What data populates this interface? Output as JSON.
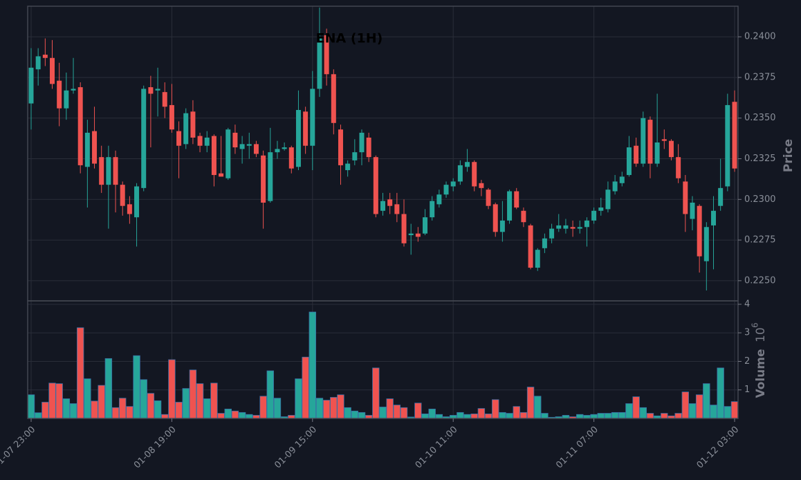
{
  "chart_data": {
    "type": "candlestick",
    "title": "ENA (1H)",
    "y_label": "Price",
    "volume_label": "Volume",
    "volume_scale": {
      "base": "10",
      "exponent": "6"
    },
    "up_color": "#26a69a",
    "down_color": "#ef5350",
    "grid": true,
    "categories": [
      "01-07 23:00",
      null,
      null,
      null,
      null,
      null,
      null,
      null,
      null,
      null,
      null,
      null,
      null,
      null,
      null,
      null,
      null,
      null,
      null,
      null,
      "01-08 19:00",
      null,
      null,
      null,
      null,
      null,
      null,
      null,
      null,
      null,
      null,
      null,
      null,
      null,
      null,
      null,
      null,
      null,
      null,
      null,
      "01-09 15:00",
      null,
      null,
      null,
      null,
      null,
      null,
      null,
      null,
      null,
      null,
      null,
      null,
      null,
      null,
      null,
      null,
      null,
      null,
      null,
      "01-10 11:00",
      null,
      null,
      null,
      null,
      null,
      null,
      null,
      null,
      null,
      null,
      null,
      null,
      null,
      null,
      null,
      null,
      null,
      null,
      null,
      "01-11 07:00",
      null,
      null,
      null,
      null,
      null,
      null,
      null,
      null,
      null,
      null,
      null,
      null,
      null,
      null,
      null,
      null,
      null,
      null,
      null,
      "01-12 03:00"
    ],
    "open": [
      0.2359,
      0.238,
      0.2389,
      0.2387,
      0.2373,
      0.2356,
      0.2367,
      0.2369,
      0.232,
      0.2342,
      0.2326,
      0.2309,
      0.2326,
      0.2309,
      0.2297,
      0.2289,
      0.2307,
      0.2369,
      0.2367,
      0.2366,
      0.2358,
      0.2342,
      0.2334,
      0.2354,
      0.2339,
      0.2333,
      0.2339,
      0.2316,
      0.2313,
      0.2341,
      0.2331,
      0.2333,
      0.2334,
      0.2327,
      0.2299,
      0.2329,
      0.2331,
      0.2332,
      0.232,
      0.2354,
      0.2333,
      0.2368,
      0.2401,
      0.2377,
      0.2343,
      0.2318,
      0.2324,
      0.2329,
      0.2338,
      0.2326,
      0.2293,
      0.23,
      0.2297,
      0.2291,
      0.2278,
      0.2279,
      0.2279,
      0.2289,
      0.2297,
      0.2303,
      0.2308,
      0.2311,
      0.232,
      0.2323,
      0.231,
      0.2306,
      0.2297,
      0.228,
      0.2287,
      0.2305,
      0.2293,
      0.2284,
      0.2258,
      0.227,
      0.2276,
      0.2282,
      0.2282,
      0.2283,
      0.2282,
      0.2283,
      0.2287,
      0.2293,
      0.2294,
      0.2305,
      0.231,
      0.2315,
      0.2333,
      0.2322,
      0.2349,
      0.2322,
      0.2337,
      0.2336,
      0.2326,
      0.2311,
      0.2288,
      0.2296,
      0.2262,
      0.2284,
      0.2296,
      0.2308,
      0.236
    ],
    "high": [
      0.2393,
      0.2393,
      0.2399,
      0.2398,
      0.2384,
      0.2378,
      0.2387,
      0.2372,
      0.2349,
      0.2357,
      0.2333,
      0.2333,
      0.233,
      0.2311,
      0.2302,
      0.231,
      0.237,
      0.2376,
      0.2381,
      0.2372,
      0.2371,
      0.2348,
      0.2356,
      0.2361,
      0.2341,
      0.2342,
      0.234,
      0.2339,
      0.2344,
      0.2346,
      0.2339,
      0.2341,
      0.2336,
      0.233,
      0.2344,
      0.2336,
      0.2335,
      0.2333,
      0.2367,
      0.2357,
      0.2379,
      0.2418,
      0.2405,
      0.238,
      0.2346,
      0.2324,
      0.2337,
      0.2343,
      0.2341,
      0.2327,
      0.2304,
      0.2304,
      0.2304,
      0.23,
      0.2285,
      0.2283,
      0.2294,
      0.2302,
      0.2306,
      0.2311,
      0.2313,
      0.2324,
      0.2331,
      0.2324,
      0.2312,
      0.2307,
      0.2298,
      0.2299,
      0.2306,
      0.2307,
      0.2295,
      0.2285,
      0.227,
      0.2279,
      0.2285,
      0.2291,
      0.2288,
      0.2287,
      0.2287,
      0.2289,
      0.2295,
      0.2301,
      0.2311,
      0.2315,
      0.2317,
      0.2339,
      0.2338,
      0.2354,
      0.2351,
      0.2365,
      0.2343,
      0.2337,
      0.2334,
      0.2315,
      0.2302,
      0.2297,
      0.2286,
      0.2302,
      0.2325,
      0.2365,
      0.2367
    ],
    "low": [
      0.2343,
      0.237,
      0.2382,
      0.2368,
      0.2345,
      0.2349,
      0.2365,
      0.2316,
      0.2295,
      0.2319,
      0.2304,
      0.2282,
      0.2292,
      0.229,
      0.2285,
      0.2271,
      0.2305,
      0.2332,
      0.2351,
      0.235,
      0.2341,
      0.2313,
      0.2331,
      0.2334,
      0.2329,
      0.2329,
      0.2308,
      0.2314,
      0.2312,
      0.2328,
      0.2322,
      0.2325,
      0.2326,
      0.2282,
      0.2298,
      0.2325,
      0.233,
      0.2316,
      0.2318,
      0.2328,
      0.2318,
      0.2363,
      0.237,
      0.234,
      0.2309,
      0.2314,
      0.2321,
      0.2321,
      0.2323,
      0.2289,
      0.229,
      0.2291,
      0.2286,
      0.2271,
      0.2266,
      0.2274,
      0.2278,
      0.2287,
      0.2295,
      0.2301,
      0.2305,
      0.2309,
      0.2317,
      0.2305,
      0.2302,
      0.2294,
      0.2277,
      0.2274,
      0.2285,
      0.2294,
      0.2283,
      0.2257,
      0.2256,
      0.2267,
      0.2273,
      0.228,
      0.2279,
      0.2277,
      0.2279,
      0.2271,
      0.2285,
      0.229,
      0.2292,
      0.2303,
      0.2308,
      0.2314,
      0.232,
      0.232,
      0.2313,
      0.232,
      0.2331,
      0.2324,
      0.231,
      0.228,
      0.2281,
      0.2255,
      0.2244,
      0.2257,
      0.2293,
      0.2305,
      0.2317
    ],
    "close": [
      0.2381,
      0.2388,
      0.2387,
      0.2371,
      0.2356,
      0.2367,
      0.2368,
      0.2321,
      0.2341,
      0.2322,
      0.2309,
      0.2326,
      0.2309,
      0.2296,
      0.2291,
      0.2308,
      0.2368,
      0.2365,
      0.2368,
      0.2357,
      0.2343,
      0.2333,
      0.2353,
      0.2338,
      0.2333,
      0.2338,
      0.2315,
      0.2314,
      0.2343,
      0.2332,
      0.2334,
      0.2334,
      0.2328,
      0.2298,
      0.2329,
      0.2331,
      0.2332,
      0.2319,
      0.2355,
      0.2333,
      0.2368,
      0.24,
      0.2377,
      0.2347,
      0.2321,
      0.2322,
      0.2329,
      0.2341,
      0.2326,
      0.2291,
      0.2299,
      0.2296,
      0.2291,
      0.2273,
      0.2279,
      0.2277,
      0.2289,
      0.2299,
      0.2303,
      0.2309,
      0.2311,
      0.2321,
      0.2323,
      0.2308,
      0.2307,
      0.2296,
      0.228,
      0.2287,
      0.2305,
      0.2295,
      0.2286,
      0.2258,
      0.2269,
      0.2276,
      0.2282,
      0.2284,
      0.2284,
      0.2282,
      0.2283,
      0.2287,
      0.2293,
      0.2295,
      0.2306,
      0.2311,
      0.2314,
      0.2332,
      0.2322,
      0.235,
      0.2322,
      0.2335,
      0.2336,
      0.2326,
      0.2313,
      0.2291,
      0.2298,
      0.2265,
      0.2283,
      0.2293,
      0.2307,
      0.2358,
      0.2319
    ],
    "volume": [
      0.83,
      0.2,
      0.57,
      1.24,
      1.22,
      0.69,
      0.52,
      3.18,
      1.39,
      0.61,
      1.16,
      2.1,
      0.38,
      0.71,
      0.42,
      2.2,
      1.36,
      0.88,
      0.62,
      0.14,
      2.06,
      0.57,
      1.05,
      1.7,
      1.22,
      0.69,
      1.24,
      0.18,
      0.33,
      0.26,
      0.21,
      0.14,
      0.11,
      0.78,
      1.67,
      0.71,
      0.06,
      0.11,
      1.39,
      2.15,
      3.73,
      0.71,
      0.64,
      0.74,
      0.83,
      0.38,
      0.26,
      0.21,
      0.11,
      1.77,
      0.4,
      0.69,
      0.47,
      0.38,
      0.05,
      0.54,
      0.16,
      0.33,
      0.14,
      0.06,
      0.11,
      0.21,
      0.14,
      0.16,
      0.35,
      0.16,
      0.66,
      0.21,
      0.18,
      0.42,
      0.21,
      1.1,
      0.78,
      0.18,
      0.04,
      0.06,
      0.11,
      0.06,
      0.14,
      0.11,
      0.14,
      0.18,
      0.18,
      0.21,
      0.21,
      0.52,
      0.76,
      0.38,
      0.18,
      0.09,
      0.18,
      0.09,
      0.18,
      0.93,
      0.52,
      0.83,
      1.22,
      0.47,
      1.77,
      0.42,
      0.59
    ],
    "ylim": [
      0.22376,
      0.24188
    ],
    "yticks": [
      {
        "value": 0.225,
        "label": "0.2250"
      },
      0.2275,
      {
        "value": 0.23,
        "label": "0.2300"
      },
      0.2325,
      {
        "value": 0.235,
        "label": "0.2350"
      },
      0.2375,
      {
        "value": 0.24,
        "label": "0.2400"
      }
    ],
    "volume_ylim": [
      0,
      4.12
    ],
    "volume_yticks": [
      1,
      2,
      3,
      4
    ]
  }
}
